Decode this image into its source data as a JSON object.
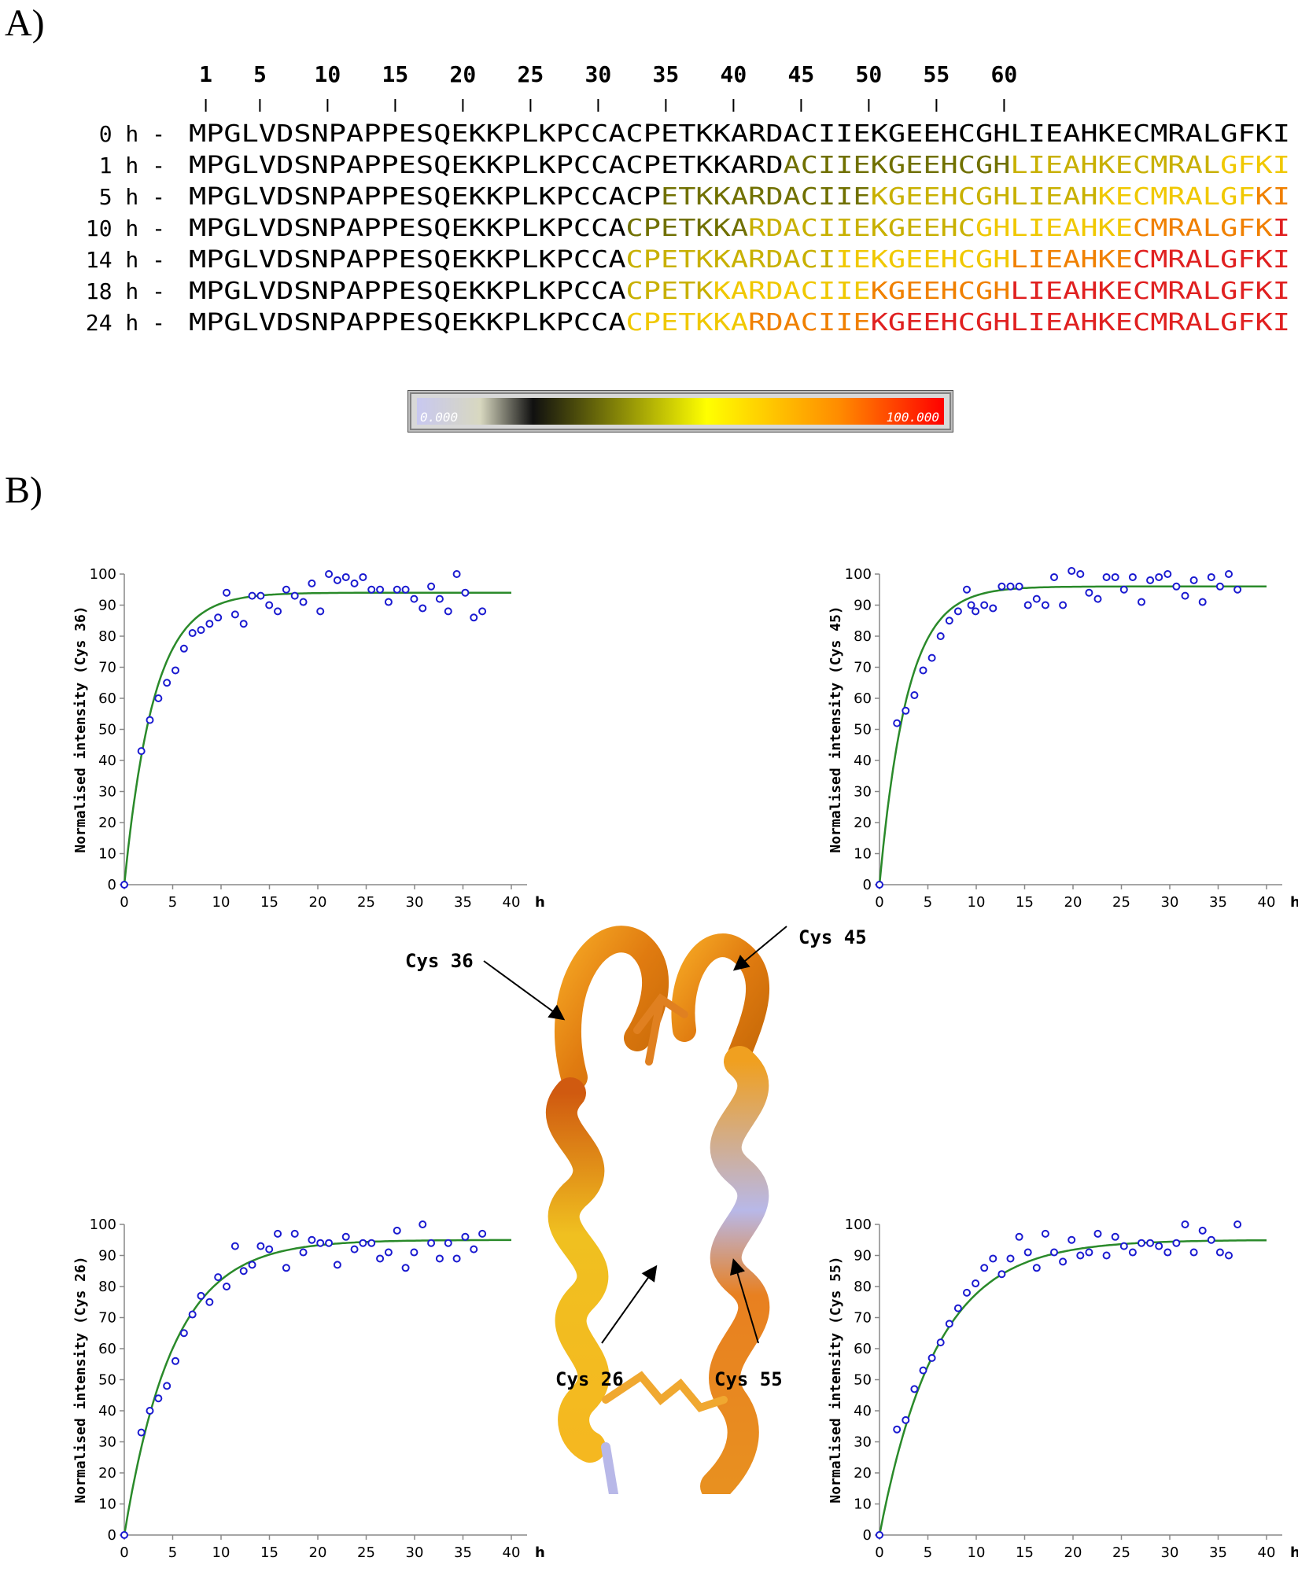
{
  "panel_a_label": "A)",
  "panel_b_label": "B)",
  "sequence": {
    "residue_numbers": [
      "1",
      "5",
      "10",
      "15",
      "20",
      "25",
      "30",
      "35",
      "40",
      "45",
      "50",
      "55",
      "60"
    ],
    "rows": [
      {
        "label": "0 h -",
        "seq": "MPGLVDSNPAPPESQEKKPLKPCCACPETKKARDACIIEKGEEHCGHLIEAHKECMRALGFKI"
      },
      {
        "label": "1 h -",
        "seq": "MPGLVDSNPAPPESQEKKPLKPCCACPETKKARDACIIEKGEEHCGHLIEAHKECMRALGFKI"
      },
      {
        "label": "5 h -",
        "seq": "MPGLVDSNPAPPESQEKKPLKPCCACPETKKARDACIIEKGEEHCGHLIEAHKECMRALGFKI"
      },
      {
        "label": "10 h -",
        "seq": "MPGLVDSNPAPPESQEKKPLKPCCACPETKKARDACIIEKGEEHCGHLIEAHKECMRALGFKI"
      },
      {
        "label": "14 h -",
        "seq": "MPGLVDSNPAPPESQEKKPLKPCCACPETKKARDACIIEKGEEHCGHLIEAHKECMRALGFKI"
      },
      {
        "label": "18 h -",
        "seq": "MPGLVDSNPAPPESQEKKPLKPCCACPETKKARDACIIEKGEEHCGHLIEAHKECMRALGFKI"
      },
      {
        "label": "24 h -",
        "seq": "MPGLVDSNPAPPESQEKKPLKPCCACPETKKARDACIIEKGEEHCGHLIEAHKECMRALGFKI"
      }
    ],
    "colors": {
      "low": "#000000",
      "mid": "#808000",
      "high": "#ffd400",
      "max": "#e02020"
    }
  },
  "colorbar": {
    "min_label": "0.000",
    "max_label": "100.000",
    "gradient": [
      "#c8c8f0",
      "#101010",
      "#ffff00",
      "#ff8000",
      "#ff0000"
    ]
  },
  "structure_labels": {
    "cys36": "Cys 36",
    "cys45": "Cys 45",
    "cys26": "Cys 26",
    "cys55": "Cys 55"
  },
  "chart_data": [
    {
      "type": "scatter",
      "ylabel": "Normalised intensity (Cys 36)",
      "xlabel": "h",
      "xlim": [
        0,
        40
      ],
      "ylim": [
        0,
        100
      ],
      "xticks": [
        0,
        5,
        10,
        15,
        20,
        25,
        30,
        35,
        40
      ],
      "yticks": [
        0,
        10,
        20,
        30,
        40,
        50,
        60,
        70,
        80,
        90,
        100
      ],
      "plateau": 94,
      "rate": 0.33,
      "points": [
        [
          0,
          0
        ],
        [
          2,
          43
        ],
        [
          3,
          53
        ],
        [
          4,
          60
        ],
        [
          5,
          65
        ],
        [
          6,
          69
        ],
        [
          7,
          76
        ],
        [
          8,
          81
        ],
        [
          9,
          82
        ],
        [
          10,
          84
        ],
        [
          11,
          86
        ],
        [
          12,
          94
        ],
        [
          13,
          87
        ],
        [
          14,
          84
        ],
        [
          15,
          93
        ],
        [
          16,
          93
        ],
        [
          17,
          90
        ],
        [
          18,
          88
        ],
        [
          19,
          95
        ],
        [
          20,
          93
        ],
        [
          21,
          91
        ],
        [
          22,
          97
        ],
        [
          23,
          88
        ],
        [
          24,
          100
        ],
        [
          25,
          98
        ],
        [
          26,
          99
        ],
        [
          27,
          97
        ],
        [
          28,
          99
        ],
        [
          29,
          95
        ],
        [
          30,
          95
        ],
        [
          31,
          91
        ],
        [
          32,
          95
        ],
        [
          33,
          95
        ],
        [
          34,
          92
        ],
        [
          35,
          89
        ],
        [
          36,
          96
        ],
        [
          37,
          92
        ],
        [
          38,
          88
        ],
        [
          39,
          100
        ],
        [
          40,
          94
        ],
        [
          41,
          86
        ],
        [
          42,
          88
        ]
      ]
    },
    {
      "type": "scatter",
      "ylabel": "Normalised intensity (Cys 45)",
      "xlabel": "h",
      "xlim": [
        0,
        40
      ],
      "ylim": [
        0,
        100
      ],
      "xticks": [
        0,
        5,
        10,
        15,
        20,
        25,
        30,
        35,
        40
      ],
      "yticks": [
        0,
        10,
        20,
        30,
        40,
        50,
        60,
        70,
        80,
        90,
        100
      ],
      "plateau": 96,
      "rate": 0.35,
      "points": [
        [
          0,
          0
        ],
        [
          2,
          52
        ],
        [
          3,
          56
        ],
        [
          4,
          61
        ],
        [
          5,
          69
        ],
        [
          6,
          73
        ],
        [
          7,
          80
        ],
        [
          8,
          85
        ],
        [
          9,
          88
        ],
        [
          10,
          95
        ],
        [
          10.5,
          90
        ],
        [
          11,
          88
        ],
        [
          12,
          90
        ],
        [
          13,
          89
        ],
        [
          14,
          96
        ],
        [
          15,
          96
        ],
        [
          16,
          96
        ],
        [
          17,
          90
        ],
        [
          18,
          92
        ],
        [
          19,
          90
        ],
        [
          20,
          99
        ],
        [
          21,
          90
        ],
        [
          22,
          101
        ],
        [
          23,
          100
        ],
        [
          24,
          94
        ],
        [
          25,
          92
        ],
        [
          26,
          99
        ],
        [
          27,
          99
        ],
        [
          28,
          95
        ],
        [
          29,
          99
        ],
        [
          30,
          91
        ],
        [
          31,
          98
        ],
        [
          32,
          99
        ],
        [
          33,
          100
        ],
        [
          34,
          96
        ],
        [
          35,
          93
        ],
        [
          36,
          98
        ],
        [
          37,
          91
        ],
        [
          38,
          99
        ],
        [
          39,
          96
        ],
        [
          40,
          100
        ],
        [
          41,
          95
        ]
      ]
    },
    {
      "type": "scatter",
      "ylabel": "Normalised intensity (Cys 26)",
      "xlabel": "h",
      "xlim": [
        0,
        40
      ],
      "ylim": [
        0,
        100
      ],
      "xticks": [
        0,
        5,
        10,
        15,
        20,
        25,
        30,
        35,
        40
      ],
      "yticks": [
        0,
        10,
        20,
        30,
        40,
        50,
        60,
        70,
        80,
        90,
        100
      ],
      "plateau": 95,
      "rate": 0.2,
      "points": [
        [
          0,
          0
        ],
        [
          2,
          33
        ],
        [
          3,
          40
        ],
        [
          4,
          44
        ],
        [
          5,
          48
        ],
        [
          6,
          56
        ],
        [
          7,
          65
        ],
        [
          8,
          71
        ],
        [
          9,
          77
        ],
        [
          10,
          75
        ],
        [
          11,
          83
        ],
        [
          12,
          80
        ],
        [
          13,
          93
        ],
        [
          14,
          85
        ],
        [
          15,
          87
        ],
        [
          16,
          93
        ],
        [
          17,
          92
        ],
        [
          18,
          97
        ],
        [
          19,
          86
        ],
        [
          20,
          97
        ],
        [
          21,
          91
        ],
        [
          22,
          95
        ],
        [
          23,
          94
        ],
        [
          24,
          94
        ],
        [
          25,
          87
        ],
        [
          26,
          96
        ],
        [
          27,
          92
        ],
        [
          28,
          94
        ],
        [
          29,
          94
        ],
        [
          30,
          89
        ],
        [
          31,
          91
        ],
        [
          32,
          98
        ],
        [
          33,
          86
        ],
        [
          34,
          91
        ],
        [
          35,
          100
        ],
        [
          36,
          94
        ],
        [
          37,
          89
        ],
        [
          38,
          94
        ],
        [
          39,
          89
        ],
        [
          40,
          96
        ],
        [
          41,
          92
        ],
        [
          42,
          97
        ]
      ]
    },
    {
      "type": "scatter",
      "ylabel": "Normalised intensity (Cys 55)",
      "xlabel": "h",
      "xlim": [
        0,
        40
      ],
      "ylim": [
        0,
        100
      ],
      "xticks": [
        0,
        5,
        10,
        15,
        20,
        25,
        30,
        35,
        40
      ],
      "yticks": [
        0,
        10,
        20,
        30,
        40,
        50,
        60,
        70,
        80,
        90,
        100
      ],
      "plateau": 95,
      "rate": 0.17,
      "points": [
        [
          0,
          0
        ],
        [
          2,
          34
        ],
        [
          3,
          37
        ],
        [
          4,
          47
        ],
        [
          5,
          53
        ],
        [
          6,
          57
        ],
        [
          7,
          62
        ],
        [
          8,
          68
        ],
        [
          9,
          73
        ],
        [
          10,
          78
        ],
        [
          11,
          81
        ],
        [
          12,
          86
        ],
        [
          13,
          89
        ],
        [
          14,
          84
        ],
        [
          15,
          89
        ],
        [
          16,
          96
        ],
        [
          17,
          91
        ],
        [
          18,
          86
        ],
        [
          19,
          97
        ],
        [
          20,
          91
        ],
        [
          21,
          88
        ],
        [
          22,
          95
        ],
        [
          23,
          90
        ],
        [
          24,
          91
        ],
        [
          25,
          97
        ],
        [
          26,
          90
        ],
        [
          27,
          96
        ],
        [
          28,
          93
        ],
        [
          29,
          91
        ],
        [
          30,
          94
        ],
        [
          31,
          94
        ],
        [
          32,
          93
        ],
        [
          33,
          91
        ],
        [
          34,
          94
        ],
        [
          35,
          100
        ],
        [
          36,
          91
        ],
        [
          37,
          98
        ],
        [
          38,
          95
        ],
        [
          39,
          91
        ],
        [
          40,
          90
        ],
        [
          41,
          100
        ]
      ]
    }
  ]
}
